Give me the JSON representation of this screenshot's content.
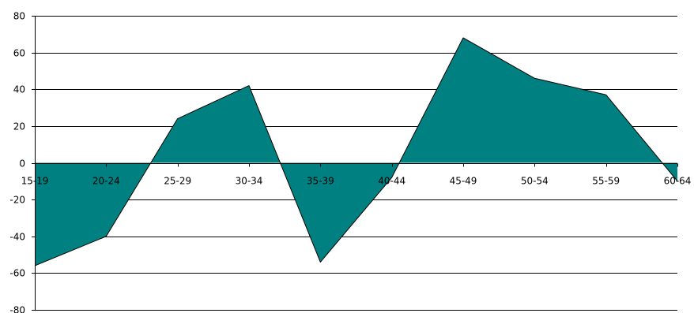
{
  "chart_data": {
    "type": "area",
    "categories": [
      "15-19",
      "20-24",
      "25-29",
      "30-34",
      "35-39",
      "40-44",
      "45-49",
      "50-54",
      "55-59",
      "60-64"
    ],
    "series": [
      {
        "values": [
          -56,
          -40,
          24,
          42,
          -54,
          -8,
          68,
          46,
          37,
          -10
        ]
      }
    ],
    "ylim": [
      -80,
      80
    ],
    "yticks": [
      80,
      60,
      40,
      20,
      0,
      -20,
      -40,
      -60,
      -80
    ],
    "grid": true,
    "fill_color": "#008080",
    "outline_color": "#000000"
  }
}
